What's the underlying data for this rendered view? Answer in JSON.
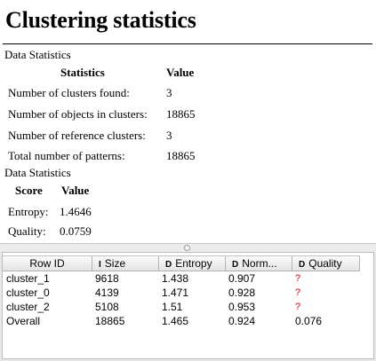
{
  "title": "Clustering statistics",
  "data_statistics_1": {
    "caption": "Data Statistics",
    "header_statistics": "Statistics",
    "header_value": "Value",
    "rows": [
      {
        "label": "Number of clusters found:",
        "value": "3"
      },
      {
        "label": "Number of objects in clusters:",
        "value": "18865"
      },
      {
        "label": "Number of reference clusters:",
        "value": "3"
      },
      {
        "label": "Total number of patterns:",
        "value": "18865"
      }
    ]
  },
  "data_statistics_2": {
    "caption": "Data Statistics",
    "header_score": "Score",
    "header_value": "Value",
    "rows": [
      {
        "label": "Entropy:",
        "value": "1.4646"
      },
      {
        "label": "Quality:",
        "value": "0.0759"
      }
    ]
  },
  "table": {
    "columns": [
      {
        "label": "Row ID",
        "icon": ""
      },
      {
        "label": "Size",
        "icon": "I"
      },
      {
        "label": "Entropy",
        "icon": "D"
      },
      {
        "label": "Norm...",
        "icon": "D"
      },
      {
        "label": "Quality",
        "icon": "D"
      }
    ],
    "rows": [
      [
        "cluster_1",
        "9618",
        "1.438",
        "0.907",
        "?"
      ],
      [
        "cluster_0",
        "4139",
        "1.471",
        "0.928",
        "?"
      ],
      [
        "cluster_2",
        "5108",
        "1.51",
        "0.953",
        "?"
      ],
      [
        "Overall",
        "18865",
        "1.465",
        "0.924",
        "0.076"
      ]
    ]
  },
  "colors": {
    "missing_value": "#d40000",
    "header_gradient_top": "#fbfbfb",
    "header_gradient_bottom": "#e4e4e4"
  }
}
